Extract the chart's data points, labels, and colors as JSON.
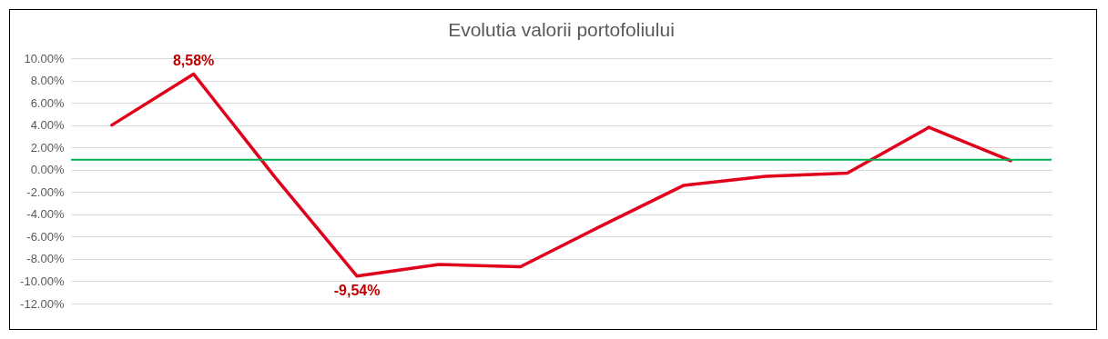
{
  "chart_data": {
    "type": "line",
    "title": "Evolutia valorii portofoliului",
    "categories": [
      null,
      null,
      null,
      null,
      null,
      null,
      null,
      null,
      null,
      null,
      null,
      null
    ],
    "series": [
      {
        "color": "#e0001b",
        "values": [
          4.0,
          8.58,
          -0.7,
          -9.54,
          -8.5,
          -8.7,
          -5.0,
          -1.4,
          -0.6,
          -0.3,
          3.8,
          0.8
        ],
        "value_labels": [
          null,
          "8,58%",
          null,
          "-9,54%",
          null,
          null,
          null,
          null,
          null,
          null,
          null,
          null
        ]
      }
    ],
    "ylim": [
      -12,
      10
    ],
    "yticks": [
      {
        "value": -12,
        "label": "-12.00%"
      },
      {
        "value": -10,
        "label": "-10.00%"
      },
      {
        "value": -8,
        "label": "-8.00%"
      },
      {
        "value": -6,
        "label": "-6.00%"
      },
      {
        "value": -4,
        "label": "-4.00%"
      },
      {
        "value": -2,
        "label": "-2.00%"
      },
      {
        "value": 0,
        "label": "0.00%"
      },
      {
        "value": 2,
        "label": "2.00%"
      },
      {
        "value": 4,
        "label": "4.00%"
      },
      {
        "value": 6,
        "label": "6.00%"
      },
      {
        "value": 8,
        "label": "8.00%"
      },
      {
        "value": 10,
        "label": "10.00%"
      }
    ],
    "ref_lines": [
      {
        "axis": "y",
        "value": 0.9,
        "color": "#00b050"
      }
    ],
    "grid": "y",
    "marker": "none",
    "line_style": "solid",
    "tick_labels": "y"
  }
}
